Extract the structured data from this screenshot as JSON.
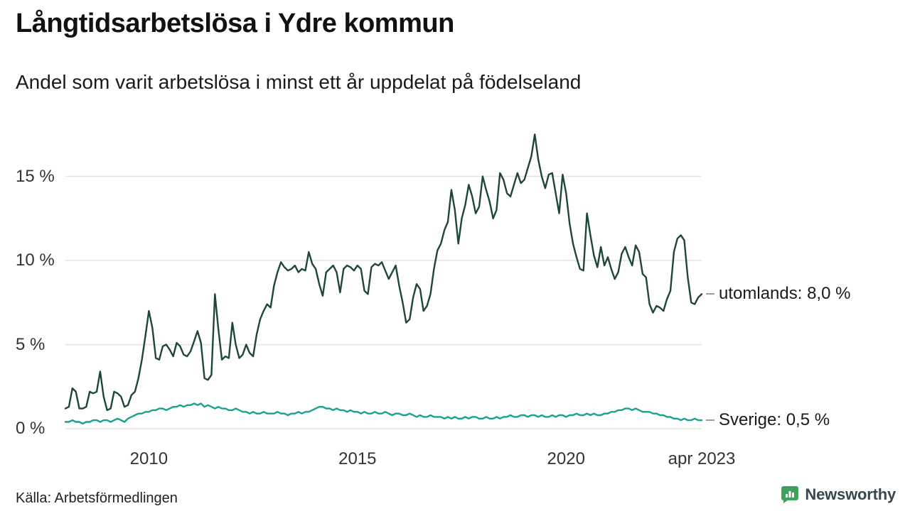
{
  "title": "Långtidsarbetslösa i Ydre kommun",
  "subtitle": "Andel som varit arbetslösa i minst ett år uppdelat på födelseland",
  "source": "Källa: Arbetsförmedlingen",
  "branding": {
    "name": "Newsworthy",
    "icon_color": "#3ea35a",
    "text_color": "#35474f"
  },
  "chart_data": {
    "type": "line",
    "title": "Långtidsarbetslösa i Ydre kommun",
    "subtitle": "Andel som varit arbetslösa i minst ett år uppdelat på födelseland",
    "x_unit": "month",
    "x_domain": [
      2008.0,
      2023.25
    ],
    "ylim": [
      0,
      18
    ],
    "grid": true,
    "grid_color": "#e3e3e3",
    "legend_position": "end-of-line-labels",
    "y_ticks": [
      {
        "label": "0 %",
        "value": 0
      },
      {
        "label": "5 %",
        "value": 5
      },
      {
        "label": "10 %",
        "value": 10
      },
      {
        "label": "15 %",
        "value": 15
      }
    ],
    "x_ticks": [
      {
        "label": "2010",
        "t": 2010
      },
      {
        "label": "2015",
        "t": 2015
      },
      {
        "label": "2020",
        "t": 2020
      },
      {
        "label": "apr 2023",
        "t": 2023.25
      }
    ],
    "series": [
      {
        "name": "utomlands",
        "color": "#1d4738",
        "end_label": "utomlands: 8,0 %",
        "last_value": 8.0,
        "values": [
          1.2,
          1.3,
          2.4,
          2.2,
          1.2,
          1.2,
          1.3,
          2.2,
          2.1,
          2.2,
          3.4,
          1.9,
          1.1,
          1.2,
          2.2,
          2.1,
          1.9,
          1.3,
          1.4,
          2.0,
          2.2,
          3.0,
          4.1,
          5.5,
          7.0,
          6.0,
          4.2,
          4.1,
          4.9,
          5.0,
          4.7,
          4.3,
          5.1,
          4.9,
          4.4,
          4.3,
          4.6,
          5.2,
          5.8,
          5.1,
          3.0,
          2.9,
          3.2,
          8.0,
          5.9,
          4.1,
          4.3,
          4.2,
          6.3,
          5.0,
          4.2,
          4.4,
          5.0,
          4.5,
          4.3,
          5.6,
          6.5,
          7.0,
          7.4,
          7.2,
          8.5,
          9.3,
          9.9,
          9.6,
          9.4,
          9.5,
          9.7,
          9.3,
          9.5,
          9.4,
          10.5,
          9.8,
          9.5,
          8.6,
          7.9,
          9.3,
          9.5,
          9.7,
          9.3,
          8.1,
          9.5,
          9.7,
          9.6,
          9.4,
          9.7,
          9.5,
          8.2,
          8.0,
          9.6,
          9.8,
          9.7,
          9.9,
          9.4,
          8.9,
          9.3,
          9.7,
          8.5,
          7.5,
          6.3,
          6.5,
          7.8,
          8.6,
          8.3,
          7.0,
          7.3,
          8.0,
          9.5,
          10.6,
          11.0,
          11.8,
          12.3,
          14.2,
          13.0,
          11.0,
          12.5,
          13.3,
          14.5,
          13.8,
          12.8,
          13.2,
          15.0,
          14.2,
          13.5,
          12.5,
          13.0,
          15.2,
          14.8,
          14.0,
          13.8,
          14.5,
          15.2,
          14.6,
          14.8,
          15.5,
          16.2,
          17.5,
          16.0,
          15.0,
          14.3,
          15.1,
          15.2,
          14.0,
          12.8,
          15.1,
          14.0,
          12.2,
          11.0,
          10.2,
          9.5,
          9.4,
          12.8,
          11.5,
          10.3,
          9.6,
          10.8,
          9.7,
          10.2,
          9.5,
          8.9,
          9.3,
          10.4,
          10.8,
          10.2,
          9.7,
          10.9,
          10.5,
          9.2,
          9.0,
          7.4,
          6.9,
          7.3,
          7.2,
          7.0,
          7.7,
          8.2,
          10.5,
          11.3,
          11.5,
          11.2,
          9.0,
          7.5,
          7.4,
          7.8,
          8.0
        ]
      },
      {
        "name": "Sverige",
        "color": "#18a18f",
        "end_label": "Sverige: 0,5 %",
        "last_value": 0.5,
        "values": [
          0.4,
          0.4,
          0.5,
          0.4,
          0.4,
          0.3,
          0.4,
          0.4,
          0.5,
          0.5,
          0.4,
          0.5,
          0.5,
          0.4,
          0.5,
          0.6,
          0.5,
          0.4,
          0.6,
          0.7,
          0.8,
          0.9,
          0.9,
          1.0,
          1.0,
          1.1,
          1.1,
          1.2,
          1.2,
          1.1,
          1.2,
          1.3,
          1.3,
          1.4,
          1.3,
          1.4,
          1.4,
          1.5,
          1.4,
          1.5,
          1.3,
          1.4,
          1.3,
          1.2,
          1.3,
          1.2,
          1.2,
          1.1,
          1.1,
          1.2,
          1.1,
          1.0,
          1.0,
          0.9,
          1.0,
          0.9,
          0.9,
          1.0,
          0.9,
          0.9,
          0.9,
          1.0,
          0.9,
          0.9,
          0.8,
          0.9,
          0.9,
          1.0,
          0.9,
          1.0,
          1.0,
          1.1,
          1.2,
          1.3,
          1.3,
          1.2,
          1.2,
          1.1,
          1.2,
          1.1,
          1.1,
          1.0,
          1.1,
          1.0,
          1.0,
          0.9,
          1.0,
          0.9,
          0.9,
          1.0,
          0.9,
          0.9,
          1.0,
          0.9,
          0.8,
          0.9,
          0.9,
          0.8,
          0.8,
          0.9,
          0.8,
          0.7,
          0.8,
          0.7,
          0.7,
          0.8,
          0.7,
          0.7,
          0.7,
          0.6,
          0.7,
          0.6,
          0.7,
          0.6,
          0.6,
          0.7,
          0.6,
          0.7,
          0.7,
          0.6,
          0.6,
          0.7,
          0.6,
          0.6,
          0.7,
          0.6,
          0.7,
          0.7,
          0.8,
          0.7,
          0.7,
          0.8,
          0.8,
          0.7,
          0.8,
          0.8,
          0.7,
          0.8,
          0.7,
          0.7,
          0.8,
          0.7,
          0.8,
          0.8,
          0.7,
          0.8,
          0.8,
          0.9,
          0.8,
          0.8,
          0.9,
          0.8,
          0.9,
          0.8,
          0.8,
          0.9,
          0.9,
          1.0,
          1.0,
          1.1,
          1.1,
          1.2,
          1.2,
          1.1,
          1.2,
          1.1,
          1.0,
          1.0,
          1.0,
          0.9,
          0.9,
          0.8,
          0.8,
          0.7,
          0.7,
          0.6,
          0.6,
          0.5,
          0.6,
          0.5,
          0.5,
          0.6,
          0.5,
          0.5
        ]
      }
    ]
  }
}
